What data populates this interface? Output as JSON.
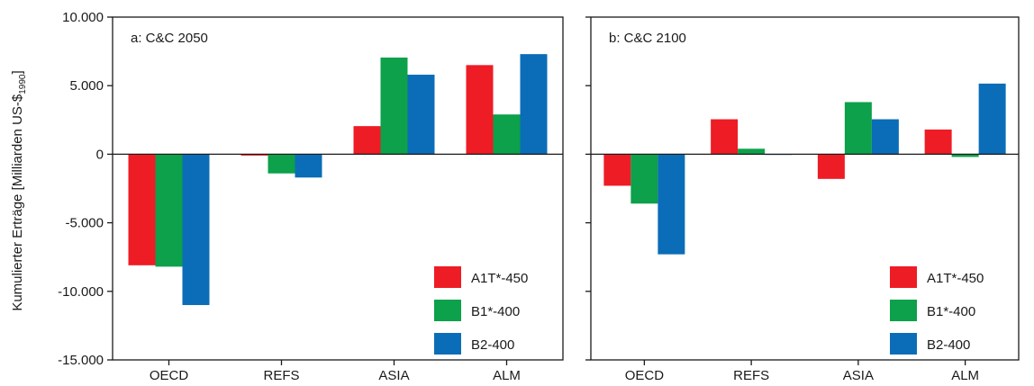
{
  "chart_data": [
    {
      "type": "bar",
      "title": "a: C&C 2050",
      "categories": [
        "OECD",
        "REFS",
        "ASIA",
        "ALM"
      ],
      "series": [
        {
          "name": "A1T*-450",
          "color": "#ee1c25",
          "values": [
            -8100,
            -100,
            2050,
            6500
          ]
        },
        {
          "name": "B1*-400",
          "color": "#0ca14a",
          "values": [
            -8200,
            -1400,
            7050,
            2900
          ]
        },
        {
          "name": "B2-400",
          "color": "#0b6db7",
          "values": [
            -11000,
            -1700,
            5800,
            7300
          ]
        }
      ],
      "ylim": [
        -15000,
        10000
      ],
      "yticks": [
        10000,
        5000,
        0,
        -5000,
        -10000,
        -15000
      ],
      "ytick_labels": [
        "10.000",
        "5.000",
        "0",
        "-5.000",
        "-10.000",
        "-15.000"
      ],
      "legend": "bottom-right"
    },
    {
      "type": "bar",
      "title": "b: C&C 2100",
      "categories": [
        "OECD",
        "REFS",
        "ASIA",
        "ALM"
      ],
      "series": [
        {
          "name": "A1T*-450",
          "color": "#ee1c25",
          "values": [
            -2300,
            2550,
            -1800,
            1800
          ]
        },
        {
          "name": "B1*-400",
          "color": "#0ca14a",
          "values": [
            -3600,
            400,
            3800,
            -200
          ]
        },
        {
          "name": "B2-400",
          "color": "#0b6db7",
          "values": [
            -7300,
            -50,
            2550,
            5150
          ]
        }
      ],
      "ylim": [
        -15000,
        10000
      ],
      "yticks": [
        10000,
        5000,
        0,
        -5000,
        -10000,
        -15000
      ],
      "legend": "bottom-right"
    }
  ],
  "ylabel": {
    "main": "Kumulierter Erträge [Milliarden US-$",
    "sub": "1990",
    "end": "]"
  }
}
